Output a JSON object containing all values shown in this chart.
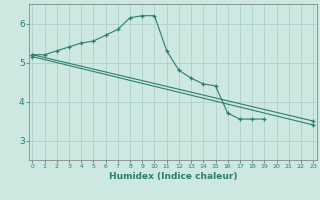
{
  "xlabel": "Humidex (Indice chaleur)",
  "x": [
    0,
    1,
    2,
    3,
    4,
    5,
    6,
    7,
    8,
    9,
    10,
    11,
    12,
    13,
    14,
    15,
    16,
    17,
    18,
    19,
    20,
    21,
    22,
    23
  ],
  "line1": [
    5.2,
    5.2,
    5.3,
    5.4,
    5.5,
    5.55,
    5.7,
    5.85,
    6.15,
    6.2,
    6.2,
    5.3,
    4.8,
    4.6,
    4.45,
    4.4,
    3.7,
    3.55,
    3.55,
    3.55,
    null,
    null,
    null,
    null
  ],
  "line2_x": [
    0,
    23
  ],
  "line2_y": [
    5.2,
    3.5
  ],
  "line3_x": [
    0,
    23
  ],
  "line3_y": [
    5.15,
    3.4
  ],
  "color": "#2d7d6e",
  "bg_color": "#cce8e0",
  "grid_color": "#aacccc",
  "ylim": [
    2.5,
    6.5
  ],
  "xlim": [
    -0.3,
    23.3
  ],
  "yticks": [
    3,
    4,
    5,
    6
  ],
  "xtick_labels": [
    "0",
    "1",
    "2",
    "3",
    "4",
    "5",
    "6",
    "7",
    "8",
    "9",
    "10",
    "11",
    "12",
    "13",
    "14",
    "15",
    "16",
    "17",
    "18",
    "19",
    "20",
    "21",
    "22",
    "23"
  ]
}
